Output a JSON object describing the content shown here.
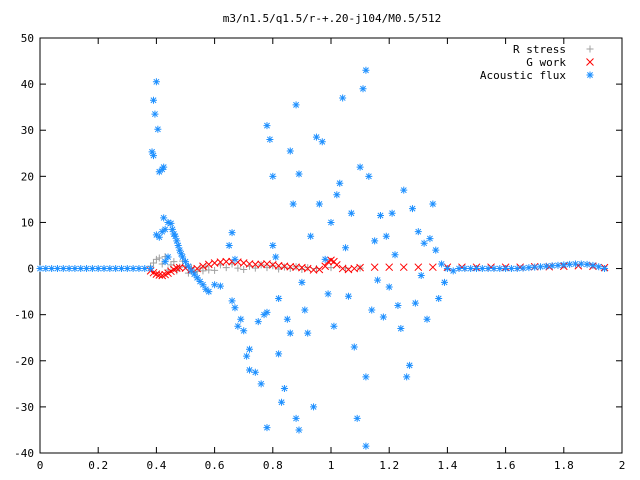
{
  "chart_data": {
    "type": "scatter",
    "title": "m3/n1.5/q1.5/r-+.20-j104/M0.5/512",
    "xlabel": "",
    "ylabel": "",
    "xlim": [
      0,
      2
    ],
    "ylim": [
      -40,
      50
    ],
    "x_ticks": [
      "0",
      "0.2",
      "0.4",
      "0.6",
      "0.8",
      "1",
      "1.2",
      "1.4",
      "1.6",
      "1.8",
      "2"
    ],
    "y_ticks": [
      "50",
      "40",
      "30",
      "20",
      "10",
      "0",
      "-10",
      "-20",
      "-30",
      "-40"
    ],
    "grid": false,
    "legend_position": "top-right",
    "series": [
      {
        "name": "R stress",
        "marker": "+",
        "color": "#a0a0a0",
        "points": [
          [
            0.38,
            0.5
          ],
          [
            0.39,
            1.2
          ],
          [
            0.4,
            2.0
          ],
          [
            0.41,
            2.3
          ],
          [
            0.42,
            1.0
          ],
          [
            0.43,
            2.6
          ],
          [
            0.44,
            -0.3
          ],
          [
            0.45,
            0.8
          ],
          [
            0.46,
            1.5
          ],
          [
            0.47,
            -0.5
          ],
          [
            0.48,
            0.3
          ],
          [
            0.49,
            1.6
          ],
          [
            0.5,
            0.6
          ],
          [
            0.51,
            -1.0
          ],
          [
            0.52,
            0.2
          ],
          [
            0.53,
            -0.8
          ],
          [
            0.54,
            -0.6
          ],
          [
            0.55,
            0.1
          ],
          [
            0.56,
            -0.5
          ],
          [
            0.57,
            0.4
          ],
          [
            0.58,
            -0.3
          ],
          [
            0.6,
            -0.4
          ],
          [
            0.62,
            0.8
          ],
          [
            0.64,
            0.2
          ],
          [
            0.66,
            1.0
          ],
          [
            0.68,
            0.1
          ],
          [
            0.7,
            -0.2
          ],
          [
            0.72,
            0.5
          ],
          [
            0.74,
            0.1
          ],
          [
            0.76,
            0.8
          ],
          [
            0.78,
            0.2
          ],
          [
            0.8,
            0.6
          ],
          [
            0.82,
            -0.1
          ],
          [
            0.84,
            0.3
          ],
          [
            0.86,
            0.0
          ],
          [
            0.88,
            0.4
          ],
          [
            0.9,
            -0.2
          ],
          [
            0.92,
            0.2
          ],
          [
            0.95,
            0.0
          ],
          [
            1.0,
            0.2
          ],
          [
            1.05,
            0.1
          ],
          [
            1.1,
            0.1
          ]
        ]
      },
      {
        "name": "G work",
        "marker": "x",
        "color": "#ff0000",
        "points": [
          [
            0.38,
            -0.5
          ],
          [
            0.39,
            -0.9
          ],
          [
            0.4,
            -1.2
          ],
          [
            0.41,
            -1.4
          ],
          [
            0.42,
            -1.5
          ],
          [
            0.43,
            -1.3
          ],
          [
            0.44,
            -1.0
          ],
          [
            0.45,
            -0.6
          ],
          [
            0.46,
            -0.2
          ],
          [
            0.47,
            0.1
          ],
          [
            0.48,
            0.2
          ],
          [
            0.5,
            0.1
          ],
          [
            0.52,
            -0.2
          ],
          [
            0.54,
            0.0
          ],
          [
            0.56,
            0.5
          ],
          [
            0.58,
            0.9
          ],
          [
            0.6,
            1.2
          ],
          [
            0.62,
            1.4
          ],
          [
            0.64,
            1.5
          ],
          [
            0.66,
            1.5
          ],
          [
            0.68,
            1.4
          ],
          [
            0.7,
            1.2
          ],
          [
            0.72,
            1.0
          ],
          [
            0.74,
            0.9
          ],
          [
            0.76,
            0.9
          ],
          [
            0.78,
            1.0
          ],
          [
            0.8,
            0.8
          ],
          [
            0.82,
            0.6
          ],
          [
            0.84,
            0.5
          ],
          [
            0.86,
            0.4
          ],
          [
            0.88,
            0.3
          ],
          [
            0.9,
            0.2
          ],
          [
            0.92,
            0.0
          ],
          [
            0.94,
            -0.3
          ],
          [
            0.96,
            -0.2
          ],
          [
            0.98,
            0.5
          ],
          [
            0.99,
            1.5
          ],
          [
            1.0,
            1.8
          ],
          [
            1.01,
            1.5
          ],
          [
            1.02,
            0.8
          ],
          [
            1.04,
            0.0
          ],
          [
            1.06,
            -0.2
          ],
          [
            1.08,
            0.0
          ],
          [
            1.1,
            0.2
          ],
          [
            1.15,
            0.3
          ],
          [
            1.2,
            0.3
          ],
          [
            1.25,
            0.3
          ],
          [
            1.3,
            0.3
          ],
          [
            1.35,
            0.3
          ],
          [
            1.4,
            0.3
          ],
          [
            1.45,
            0.3
          ],
          [
            1.5,
            0.3
          ],
          [
            1.55,
            0.3
          ],
          [
            1.6,
            0.3
          ],
          [
            1.65,
            0.3
          ],
          [
            1.7,
            0.4
          ],
          [
            1.75,
            0.4
          ],
          [
            1.8,
            0.5
          ],
          [
            1.85,
            0.6
          ],
          [
            1.9,
            0.5
          ],
          [
            1.94,
            0.2
          ]
        ]
      },
      {
        "name": "Acoustic flux",
        "marker": "*",
        "color": "#1e90ff",
        "points": [
          [
            0.0,
            0.0
          ],
          [
            0.02,
            0.0
          ],
          [
            0.04,
            0.0
          ],
          [
            0.06,
            0.0
          ],
          [
            0.08,
            0.0
          ],
          [
            0.1,
            0.0
          ],
          [
            0.12,
            0.0
          ],
          [
            0.14,
            0.0
          ],
          [
            0.16,
            0.0
          ],
          [
            0.18,
            0.0
          ],
          [
            0.2,
            0.0
          ],
          [
            0.22,
            0.0
          ],
          [
            0.24,
            0.0
          ],
          [
            0.26,
            0.0
          ],
          [
            0.28,
            0.0
          ],
          [
            0.3,
            0.0
          ],
          [
            0.32,
            0.0
          ],
          [
            0.34,
            0.0
          ],
          [
            0.36,
            0.0
          ],
          [
            0.38,
            0.0
          ],
          [
            0.385,
            25.3
          ],
          [
            0.39,
            36.5
          ],
          [
            0.395,
            33.5
          ],
          [
            0.4,
            40.5
          ],
          [
            0.405,
            30.2
          ],
          [
            0.41,
            21.0
          ],
          [
            0.42,
            21.5
          ],
          [
            0.425,
            22.0
          ],
          [
            0.39,
            24.5
          ],
          [
            0.4,
            7.3
          ],
          [
            0.41,
            6.8
          ],
          [
            0.42,
            8.0
          ],
          [
            0.425,
            11.0
          ],
          [
            0.43,
            8.5
          ],
          [
            0.44,
            10.0
          ],
          [
            0.45,
            9.8
          ],
          [
            0.455,
            8.5
          ],
          [
            0.46,
            7.5
          ],
          [
            0.465,
            7.0
          ],
          [
            0.47,
            6.0
          ],
          [
            0.475,
            5.0
          ],
          [
            0.48,
            4.0
          ],
          [
            0.485,
            3.2
          ],
          [
            0.49,
            2.5
          ],
          [
            0.5,
            1.5
          ],
          [
            0.51,
            0.5
          ],
          [
            0.52,
            -0.5
          ],
          [
            0.53,
            -1.2
          ],
          [
            0.54,
            -2.0
          ],
          [
            0.55,
            -2.8
          ],
          [
            0.56,
            -3.5
          ],
          [
            0.57,
            -4.5
          ],
          [
            0.58,
            -5.0
          ],
          [
            0.6,
            -3.5
          ],
          [
            0.62,
            -3.8
          ],
          [
            0.43,
            1.5
          ],
          [
            0.44,
            2.5
          ],
          [
            0.65,
            5.0
          ],
          [
            0.66,
            7.8
          ],
          [
            0.67,
            2.0
          ],
          [
            0.66,
            -7.0
          ],
          [
            0.67,
            -8.5
          ],
          [
            0.68,
            -12.5
          ],
          [
            0.69,
            -11.0
          ],
          [
            0.7,
            -13.5
          ],
          [
            0.71,
            -19.0
          ],
          [
            0.72,
            -17.5
          ],
          [
            0.72,
            -22.0
          ],
          [
            0.74,
            -22.5
          ],
          [
            0.75,
            -11.5
          ],
          [
            0.76,
            -25.0
          ],
          [
            0.77,
            -10.0
          ],
          [
            0.78,
            -9.5
          ],
          [
            0.78,
            -34.5
          ],
          [
            0.78,
            31.0
          ],
          [
            0.79,
            28.0
          ],
          [
            0.8,
            20.0
          ],
          [
            0.8,
            5.0
          ],
          [
            0.81,
            2.5
          ],
          [
            0.82,
            -6.5
          ],
          [
            0.82,
            -18.5
          ],
          [
            0.83,
            -29.0
          ],
          [
            0.84,
            -26.0
          ],
          [
            0.85,
            -11.0
          ],
          [
            0.86,
            -14.0
          ],
          [
            0.86,
            25.5
          ],
          [
            0.87,
            14.0
          ],
          [
            0.88,
            35.5
          ],
          [
            0.89,
            20.5
          ],
          [
            0.88,
            -32.5
          ],
          [
            0.89,
            -35.0
          ],
          [
            0.9,
            -3.0
          ],
          [
            0.91,
            -9.0
          ],
          [
            0.92,
            -14.0
          ],
          [
            0.93,
            7.0
          ],
          [
            0.94,
            -30.0
          ],
          [
            0.95,
            28.5
          ],
          [
            0.96,
            14.0
          ],
          [
            0.97,
            27.5
          ],
          [
            0.98,
            2.0
          ],
          [
            0.99,
            -5.5
          ],
          [
            1.0,
            10.0
          ],
          [
            1.01,
            -12.5
          ],
          [
            1.02,
            16.0
          ],
          [
            1.03,
            18.5
          ],
          [
            1.04,
            37.0
          ],
          [
            1.05,
            4.5
          ],
          [
            1.06,
            -6.0
          ],
          [
            1.07,
            12.0
          ],
          [
            1.08,
            -17.0
          ],
          [
            1.09,
            -32.5
          ],
          [
            1.1,
            22.0
          ],
          [
            1.11,
            39.0
          ],
          [
            1.12,
            43.0
          ],
          [
            1.12,
            -23.5
          ],
          [
            1.12,
            -38.5
          ],
          [
            1.13,
            20.0
          ],
          [
            1.14,
            -9.0
          ],
          [
            1.15,
            6.0
          ],
          [
            1.16,
            -2.5
          ],
          [
            1.17,
            11.5
          ],
          [
            1.18,
            -10.5
          ],
          [
            1.19,
            7.0
          ],
          [
            1.2,
            -4.0
          ],
          [
            1.21,
            12.0
          ],
          [
            1.22,
            3.0
          ],
          [
            1.23,
            -8.0
          ],
          [
            1.24,
            -13.0
          ],
          [
            1.25,
            17.0
          ],
          [
            1.26,
            -23.5
          ],
          [
            1.27,
            -21.0
          ],
          [
            1.28,
            13.0
          ],
          [
            1.29,
            -7.5
          ],
          [
            1.3,
            8.0
          ],
          [
            1.31,
            -1.5
          ],
          [
            1.32,
            5.5
          ],
          [
            1.33,
            -11.0
          ],
          [
            1.34,
            6.5
          ],
          [
            1.35,
            14.0
          ],
          [
            1.36,
            4.0
          ],
          [
            1.37,
            -6.5
          ],
          [
            1.38,
            1.0
          ],
          [
            1.39,
            -3.0
          ],
          [
            1.4,
            0.0
          ],
          [
            1.42,
            -0.5
          ],
          [
            1.44,
            0.0
          ],
          [
            1.46,
            0.0
          ],
          [
            1.48,
            0.0
          ],
          [
            1.5,
            0.0
          ],
          [
            1.52,
            0.0
          ],
          [
            1.54,
            0.0
          ],
          [
            1.56,
            0.0
          ],
          [
            1.58,
            0.0
          ],
          [
            1.6,
            0.0
          ],
          [
            1.62,
            0.0
          ],
          [
            1.64,
            0.0
          ],
          [
            1.66,
            0.1
          ],
          [
            1.68,
            0.2
          ],
          [
            1.7,
            0.3
          ],
          [
            1.72,
            0.4
          ],
          [
            1.74,
            0.5
          ],
          [
            1.76,
            0.6
          ],
          [
            1.78,
            0.7
          ],
          [
            1.8,
            0.8
          ],
          [
            1.82,
            0.9
          ],
          [
            1.84,
            1.0
          ],
          [
            1.86,
            1.0
          ],
          [
            1.88,
            0.9
          ],
          [
            1.9,
            0.7
          ],
          [
            1.92,
            0.4
          ],
          [
            1.94,
            0.0
          ]
        ]
      }
    ]
  }
}
